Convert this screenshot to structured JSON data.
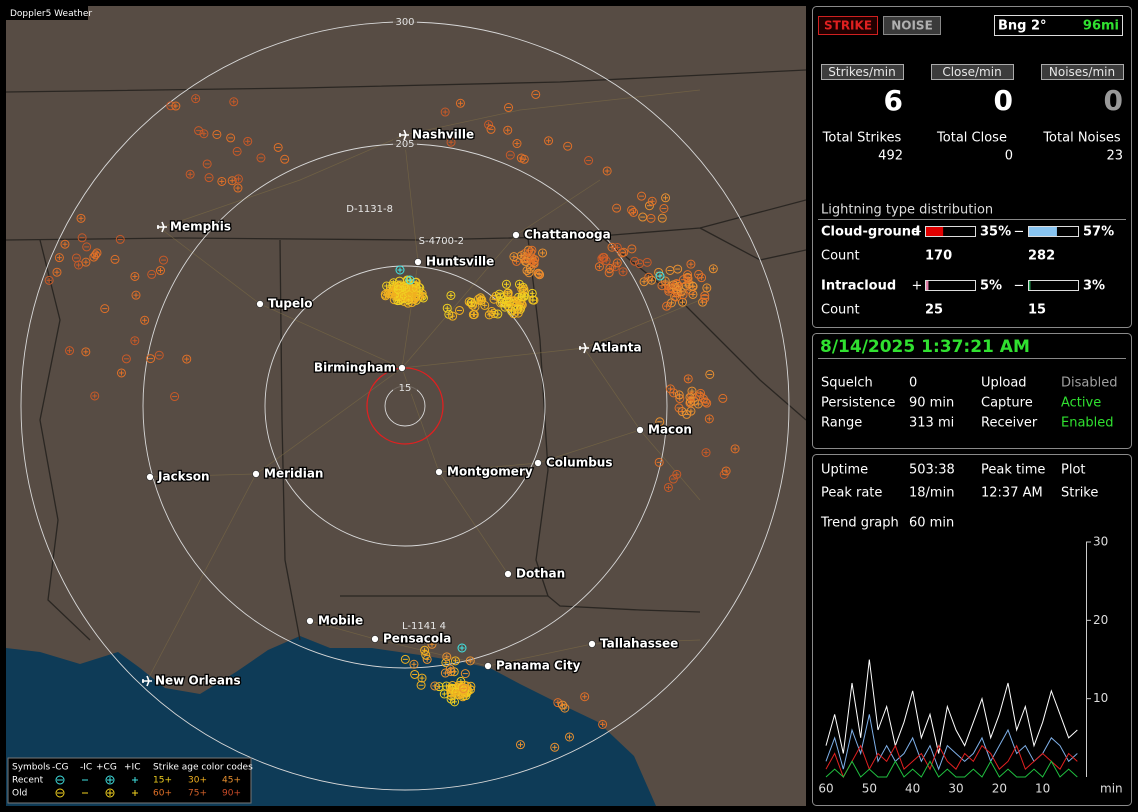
{
  "header": {
    "brand": "Doppler5 Weather"
  },
  "map": {
    "cities": [
      "Nashville",
      "Memphis",
      "Chattanooga",
      "Huntsville",
      "Tupelo",
      "Atlanta",
      "Birmingham",
      "Macon",
      "Jackson",
      "Meridian",
      "Montgomery",
      "Columbus",
      "Dothan",
      "Mobile",
      "Pensacola",
      "Tallahassee",
      "Panama City",
      "New Orleans"
    ],
    "ring_labels": [
      "300",
      "205",
      "15"
    ],
    "strike_tags": [
      "D-1131-8",
      "S-4700-2",
      "L-1141 4"
    ]
  },
  "legend": {
    "symbols_title": "Symbols",
    "headers": [
      "-CG",
      "-IC",
      "+CG",
      "+IC"
    ],
    "rows": [
      "Recent",
      "Old"
    ],
    "age_title": "Strike age color codes",
    "ages": [
      "15+",
      "30+",
      "45+",
      "60+",
      "75+",
      "90+"
    ]
  },
  "status": {
    "modes": [
      "STRIKE",
      "NOISE"
    ],
    "bearing": "Bng 2°",
    "distance": "96mi"
  },
  "rates": [
    {
      "label": "Strikes/min",
      "value": 6
    },
    {
      "label": "Close/min",
      "value": 0
    },
    {
      "label": "Noises/min",
      "value": 0
    }
  ],
  "totals": [
    {
      "label": "Total Strikes",
      "value": 492
    },
    {
      "label": "Total Close",
      "value": 0
    },
    {
      "label": "Total Noises",
      "value": 23
    }
  ],
  "distribution": {
    "title": "Lightning type distribution",
    "count_label": "Count",
    "rows": [
      {
        "type": "Cloud-ground",
        "pos_sign": "+",
        "neg_sign": "−",
        "pos": {
          "value": 35,
          "label": "35%",
          "color": "#e00000"
        },
        "neg": {
          "value": 57,
          "label": "57%",
          "color": "#88c4f0"
        },
        "pos_count": 170,
        "neg_count": 282
      },
      {
        "type": "Intracloud",
        "pos_sign": "+",
        "neg_sign": "−",
        "pos": {
          "value": 5,
          "label": "5%",
          "color": "#e080a8"
        },
        "neg": {
          "value": 3,
          "label": "3%",
          "color": "#20a050"
        },
        "pos_count": 25,
        "neg_count": 15
      }
    ]
  },
  "clock": "8/14/2025 1:37:21 AM",
  "settings": [
    {
      "label": "Squelch",
      "value": "0",
      "color": "#ffffff"
    },
    {
      "label": "Persistence",
      "value": "90 min",
      "color": "#ffffff"
    },
    {
      "label": "Range",
      "value": "313 mi",
      "color": "#ffffff"
    },
    {
      "label": "Upload",
      "value": "Disabled",
      "color": "#a0a0a0"
    },
    {
      "label": "Capture",
      "value": "Active",
      "color": "#30e030"
    },
    {
      "label": "Receiver",
      "value": "Enabled",
      "color": "#30e030"
    }
  ],
  "info": [
    {
      "label": "Uptime",
      "value": "503:38"
    },
    {
      "label": "Peak time",
      "value": "12:37 AM"
    },
    {
      "label": "Plot",
      "value": "Strike"
    },
    {
      "label": "Peak rate",
      "value": "18/min"
    },
    {
      "label": "Trend graph",
      "value": "60 min"
    }
  ],
  "chart_data": {
    "type": "line",
    "x": [
      60,
      58,
      56,
      54,
      52,
      50,
      48,
      46,
      44,
      42,
      40,
      38,
      36,
      34,
      32,
      30,
      28,
      26,
      24,
      22,
      20,
      18,
      16,
      14,
      12,
      10,
      8,
      6,
      4,
      2
    ],
    "series": [
      {
        "color": "#ffffff",
        "values": [
          4,
          8,
          3,
          12,
          5,
          15,
          6,
          9,
          4,
          7,
          11,
          5,
          8,
          3,
          9,
          6,
          4,
          7,
          10,
          5,
          8,
          12,
          6,
          9,
          4,
          7,
          11,
          8,
          5,
          6
        ]
      },
      {
        "color": "#7fb0e8",
        "values": [
          2,
          5,
          1,
          6,
          3,
          8,
          2,
          4,
          2,
          3,
          5,
          2,
          4,
          1,
          4,
          3,
          2,
          3,
          5,
          2,
          4,
          6,
          3,
          4,
          2,
          3,
          5,
          4,
          2,
          3
        ]
      },
      {
        "color": "#e02020",
        "values": [
          1,
          3,
          0,
          2,
          4,
          1,
          3,
          2,
          4,
          1,
          2,
          3,
          1,
          4,
          2,
          1,
          3,
          2,
          4,
          3,
          1,
          2,
          4,
          1,
          2,
          3,
          2,
          1,
          3,
          2
        ]
      },
      {
        "color": "#20c040",
        "values": [
          0,
          1,
          0,
          2,
          0,
          1,
          0,
          0,
          2,
          0,
          1,
          0,
          2,
          0,
          1,
          0,
          0,
          1,
          0,
          2,
          0,
          1,
          0,
          0,
          1,
          0,
          2,
          0,
          1,
          0
        ]
      }
    ],
    "xlim": [
      60,
      0
    ],
    "ylim": [
      0,
      30
    ],
    "xticks": [
      60,
      50,
      40,
      30,
      20,
      10
    ],
    "yticks": [
      10,
      20,
      30
    ],
    "x_label": "min"
  }
}
